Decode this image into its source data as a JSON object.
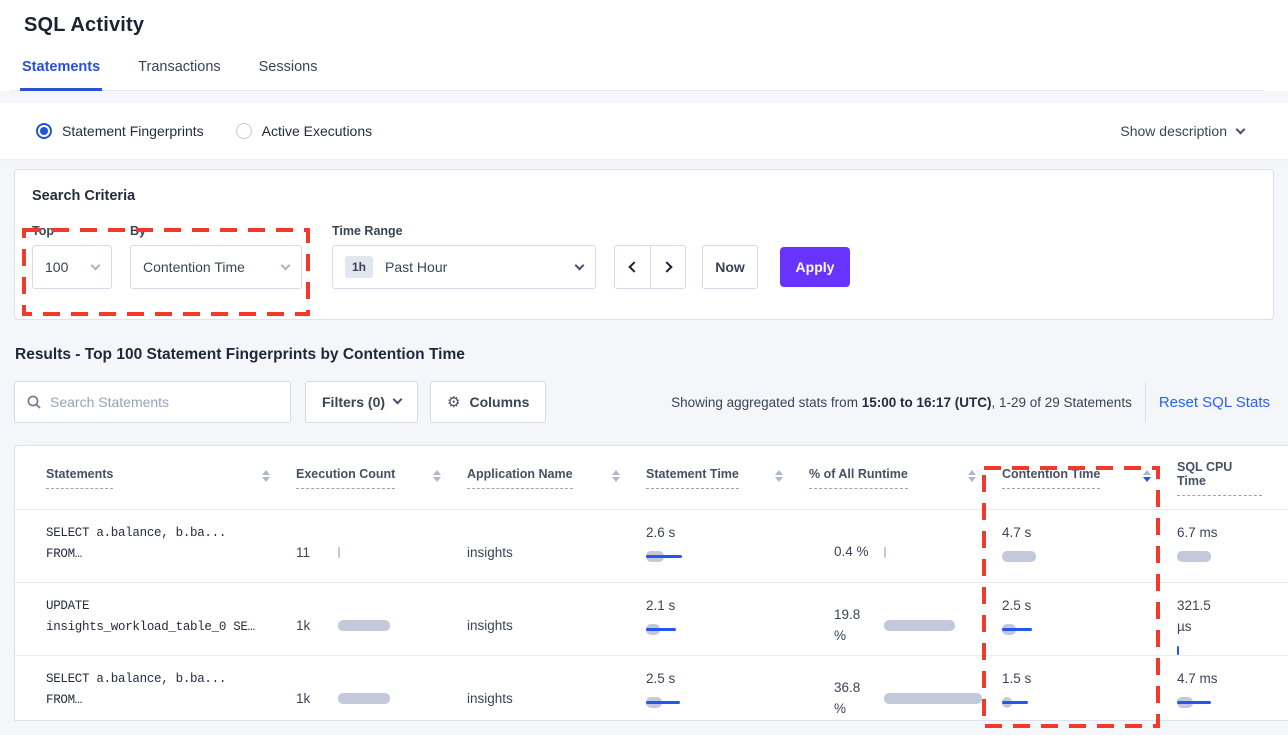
{
  "page": {
    "title": "SQL Activity"
  },
  "tabs": [
    {
      "label": "Statements",
      "active": true
    },
    {
      "label": "Transactions",
      "active": false
    },
    {
      "label": "Sessions",
      "active": false
    }
  ],
  "view_toggle": {
    "options": [
      {
        "label": "Statement Fingerprints",
        "selected": true
      },
      {
        "label": "Active Executions",
        "selected": false
      }
    ],
    "show_description_label": "Show description"
  },
  "search_criteria": {
    "heading": "Search Criteria",
    "top": {
      "label": "Top",
      "value": "100"
    },
    "by": {
      "label": "By",
      "value": "Contention Time"
    },
    "time_range": {
      "label": "Time Range",
      "badge": "1h",
      "value": "Past Hour"
    },
    "now_label": "Now",
    "apply_label": "Apply"
  },
  "results": {
    "heading": "Results - Top 100 Statement Fingerprints by Contention Time",
    "search_placeholder": "Search Statements",
    "filters_label": "Filters (0)",
    "columns_label": "Columns",
    "stats_prefix": "Showing aggregated stats from ",
    "stats_bold": "15:00 to 16:17 (UTC)",
    "stats_suffix": ", 1-29 of 29 Statements",
    "reset_label": "Reset SQL Stats"
  },
  "table": {
    "columns": [
      "Statements",
      "Execution Count",
      "Application Name",
      "Statement Time",
      "% of All Runtime",
      "Contention Time",
      "SQL CPU Time"
    ],
    "sort": {
      "column": "Contention Time",
      "direction": "desc"
    },
    "rows": [
      {
        "statement_line1": "SELECT a.balance, b.ba...",
        "statement_line2": "FROM…",
        "execution_count": {
          "value": "11",
          "bar": 2,
          "line": 0
        },
        "application_name": "insights",
        "statement_time": {
          "value": "2.6 s",
          "bar": 18,
          "line": 36
        },
        "pct_runtime": {
          "value": "0.4 %",
          "bar": 2,
          "line": 0
        },
        "contention_time": {
          "value": "4.7 s",
          "bar": 34,
          "line": 0
        },
        "sql_cpu_time": {
          "value": "6.7 ms",
          "bar": 34,
          "line": 0
        }
      },
      {
        "statement_line1": "UPDATE",
        "statement_line2": "insights_workload_table_0 SE…",
        "execution_count": {
          "value": "1k",
          "bar": 52,
          "line": 0
        },
        "application_name": "insights",
        "statement_time": {
          "value": "2.1 s",
          "bar": 14,
          "line": 30
        },
        "pct_runtime": {
          "value": "19.8 %",
          "bar": 71,
          "line": 0
        },
        "contention_time": {
          "value": "2.5 s",
          "bar": 14,
          "line": 30
        },
        "sql_cpu_time": {
          "value": "321.5 µs",
          "bar": 0,
          "line": 2
        }
      },
      {
        "statement_line1": "SELECT a.balance, b.ba...",
        "statement_line2": "FROM…",
        "execution_count": {
          "value": "1k",
          "bar": 52,
          "line": 0
        },
        "application_name": "insights",
        "statement_time": {
          "value": "2.5 s",
          "bar": 16,
          "line": 34
        },
        "pct_runtime": {
          "value": "36.8 %",
          "bar": 98,
          "line": 0
        },
        "contention_time": {
          "value": "1.5 s",
          "bar": 10,
          "line": 26
        },
        "sql_cpu_time": {
          "value": "4.7 ms",
          "bar": 16,
          "line": 34
        }
      }
    ]
  },
  "colors": {
    "accent_blue": "#2a4fd8",
    "link_blue": "#2a62f5",
    "apply_purple": "#6933ff",
    "bar_gray": "#c3c9db",
    "bar_line_blue": "#2257f0",
    "annotation_red": "#f2392c"
  },
  "annotations": {
    "color": "#f2392c",
    "rects": [
      {
        "label": "top-by-selectors"
      },
      {
        "label": "contention-time-column"
      }
    ]
  }
}
